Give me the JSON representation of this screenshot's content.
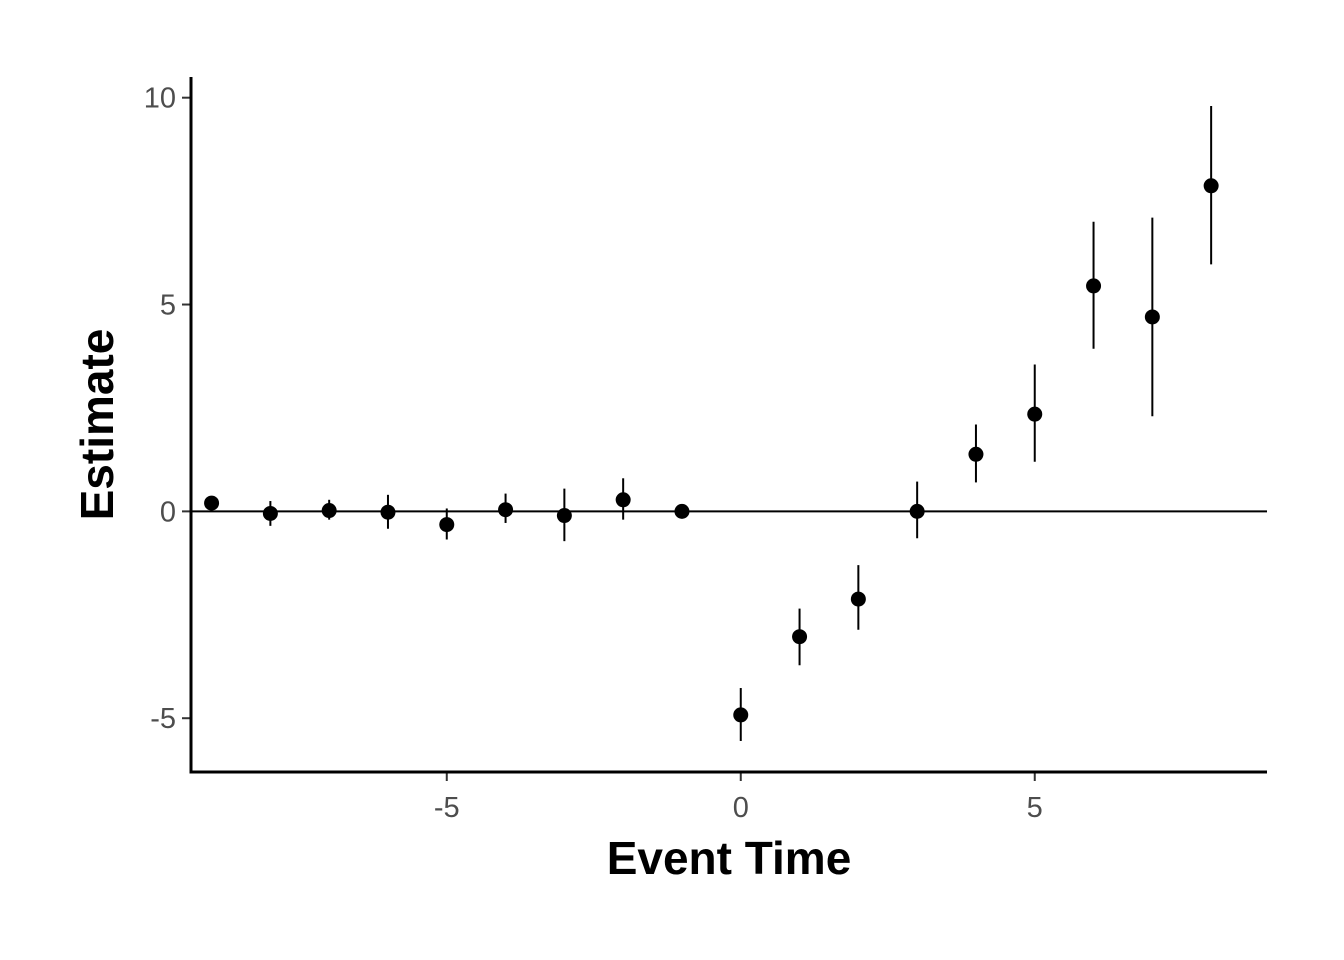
{
  "chart_data": {
    "type": "scatter",
    "title": "",
    "xlabel": "Event Time",
    "ylabel": "Estimate",
    "xlim": [
      -9.35,
      8.95
    ],
    "ylim": [
      -6.3,
      10.5
    ],
    "x_ticks": [
      -5,
      0,
      5
    ],
    "x_tick_labels": [
      "-5",
      "0",
      "5"
    ],
    "y_ticks": [
      -5,
      0,
      5,
      10
    ],
    "y_tick_labels": [
      "-5",
      "0",
      "5",
      "10"
    ],
    "grid": false,
    "reference_line_y": 0,
    "point_color": "#000000",
    "points": [
      {
        "x": -9,
        "y": 0.2,
        "lower": 0.2,
        "upper": 0.2
      },
      {
        "x": -8,
        "y": -0.05,
        "lower": -0.35,
        "upper": 0.25
      },
      {
        "x": -7,
        "y": 0.02,
        "lower": -0.2,
        "upper": 0.28
      },
      {
        "x": -6,
        "y": -0.02,
        "lower": -0.42,
        "upper": 0.4
      },
      {
        "x": -5,
        "y": -0.32,
        "lower": -0.68,
        "upper": 0.07
      },
      {
        "x": -4,
        "y": 0.04,
        "lower": -0.28,
        "upper": 0.43
      },
      {
        "x": -3,
        "y": -0.1,
        "lower": -0.72,
        "upper": 0.55
      },
      {
        "x": -2,
        "y": 0.28,
        "lower": -0.2,
        "upper": 0.8
      },
      {
        "x": -1,
        "y": 0.0,
        "lower": 0.0,
        "upper": 0.0
      },
      {
        "x": 0,
        "y": -4.92,
        "lower": -5.55,
        "upper": -4.27
      },
      {
        "x": 1,
        "y": -3.03,
        "lower": -3.72,
        "upper": -2.35
      },
      {
        "x": 2,
        "y": -2.12,
        "lower": -2.86,
        "upper": -1.3
      },
      {
        "x": 3,
        "y": 0.0,
        "lower": -0.65,
        "upper": 0.72
      },
      {
        "x": 4,
        "y": 1.38,
        "lower": 0.7,
        "upper": 2.1
      },
      {
        "x": 5,
        "y": 2.35,
        "lower": 1.2,
        "upper": 3.55
      },
      {
        "x": 6,
        "y": 5.45,
        "lower": 3.93,
        "upper": 7.0
      },
      {
        "x": 7,
        "y": 4.7,
        "lower": 2.3,
        "upper": 7.1
      },
      {
        "x": 8,
        "y": 7.87,
        "lower": 5.97,
        "upper": 9.8
      }
    ]
  }
}
